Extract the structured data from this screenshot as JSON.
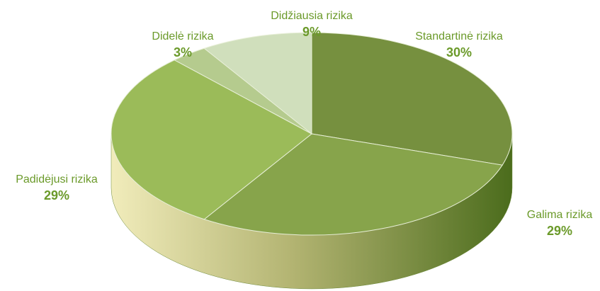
{
  "chart_data": {
    "type": "pie",
    "categories": [
      "Standartinė rizika",
      "Galima rizika",
      "Padidėjusi rizika",
      "Didelė rizika",
      "Didžiausia rizika"
    ],
    "values": [
      30,
      29,
      29,
      3,
      9
    ],
    "value_labels": [
      "30%",
      "29%",
      "29%",
      "3%",
      "9%"
    ],
    "colors": [
      "#76903f",
      "#87a44b",
      "#9bbb59",
      "#b5cb8e",
      "#d0dfbc"
    ]
  }
}
